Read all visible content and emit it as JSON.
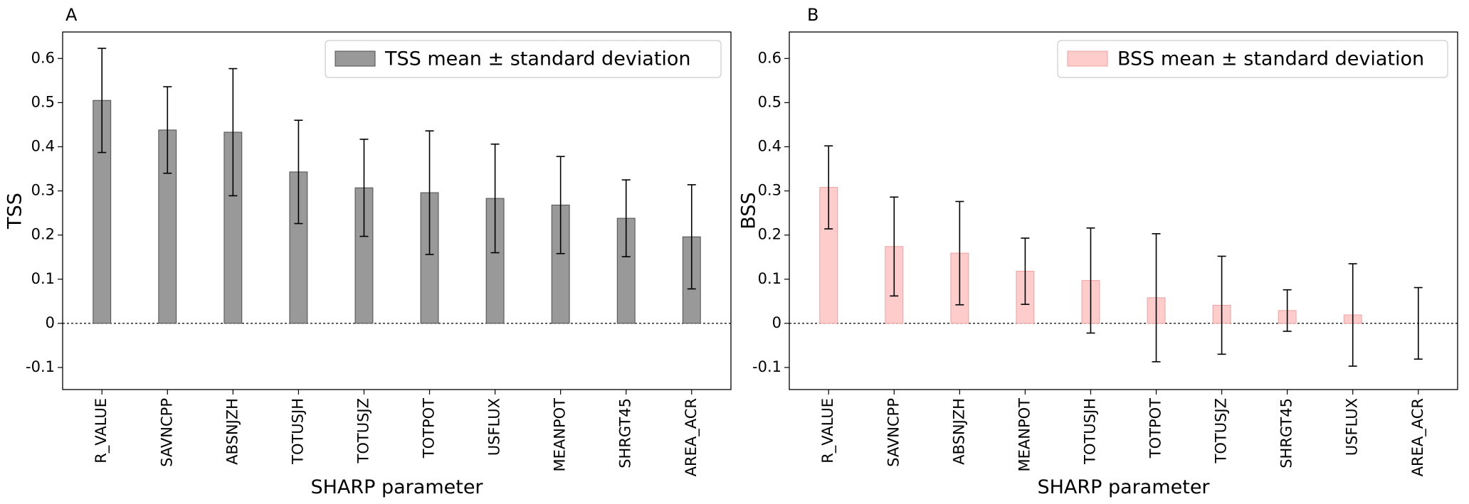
{
  "chart_data": [
    {
      "panel_label": "A",
      "type": "bar",
      "categories": [
        "R_VALUE",
        "SAVNCPP",
        "ABSNJZH",
        "TOTUSJH",
        "TOTUSJZ",
        "TOTPOT",
        "USFLUX",
        "MEANPOT",
        "SHRGT45",
        "AREA_ACR"
      ],
      "values": [
        0.505,
        0.438,
        0.433,
        0.343,
        0.307,
        0.296,
        0.283,
        0.268,
        0.238,
        0.196
      ],
      "error": [
        0.118,
        0.098,
        0.144,
        0.117,
        0.11,
        0.14,
        0.123,
        0.11,
        0.087,
        0.118
      ],
      "legend": "TSS mean ± standard deviation",
      "legend_position": "top-right",
      "xlabel": "SHARP parameter",
      "ylabel": "TSS",
      "ylim": [
        -0.15,
        0.66
      ],
      "yticks": [
        -0.1,
        0,
        0.1,
        0.2,
        0.3,
        0.4,
        0.5,
        0.6
      ],
      "ytick_labels": [
        "-0.1",
        "0",
        "0.1",
        "0.2",
        "0.3",
        "0.4",
        "0.5",
        "0.6"
      ],
      "bar_color": "#999999",
      "bar_edge": "#4d4d4d",
      "zero_line": true,
      "grid": false
    },
    {
      "panel_label": "B",
      "type": "bar",
      "categories": [
        "R_VALUE",
        "SAVNCPP",
        "ABSNJZH",
        "MEANPOT",
        "TOTUSJH",
        "TOTPOT",
        "TOTUSJZ",
        "SHRGT45",
        "USFLUX",
        "AREA_ACR"
      ],
      "values": [
        0.308,
        0.174,
        0.159,
        0.118,
        0.097,
        0.058,
        0.041,
        0.029,
        0.019,
        0.0
      ],
      "error": [
        0.094,
        0.112,
        0.117,
        0.075,
        0.119,
        0.145,
        0.111,
        0.047,
        0.116,
        0.081
      ],
      "legend": "BSS mean ± standard deviation",
      "legend_position": "top-right",
      "xlabel": "SHARP parameter",
      "ylabel": "BSS",
      "ylim": [
        -0.15,
        0.66
      ],
      "yticks": [
        -0.1,
        0,
        0.1,
        0.2,
        0.3,
        0.4,
        0.5,
        0.6
      ],
      "ytick_labels": [
        "-0.1",
        "0",
        "0.1",
        "0.2",
        "0.3",
        "0.4",
        "0.5",
        "0.6"
      ],
      "bar_color": "#ffcccc",
      "bar_edge": "#f0a0a0",
      "zero_line": true,
      "grid": false
    }
  ]
}
